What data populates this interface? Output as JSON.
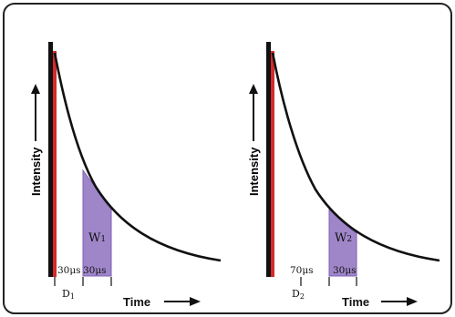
{
  "diagram": {
    "panels": [
      {
        "id": "left",
        "y_axis_label": "Intensity",
        "x_axis_label": "Time",
        "delay_label": "30μs",
        "delay_symbol": "D",
        "delay_index": "1",
        "window_width_label": "30μs",
        "window_symbol": "W",
        "window_index": "1"
      },
      {
        "id": "right",
        "y_axis_label": "Intensity",
        "x_axis_label": "Time",
        "delay_label": "70μs",
        "delay_symbol": "D",
        "delay_index": "2",
        "window_width_label": "30μs",
        "window_symbol": "W",
        "window_index": "2"
      }
    ],
    "colors": {
      "frame": "#222222",
      "pulse_red": "#d42a2a",
      "pulse_black": "#111111",
      "window_fill": "#9f86c9",
      "window_stroke": "#7f5fb5",
      "curve": "#111111"
    }
  }
}
